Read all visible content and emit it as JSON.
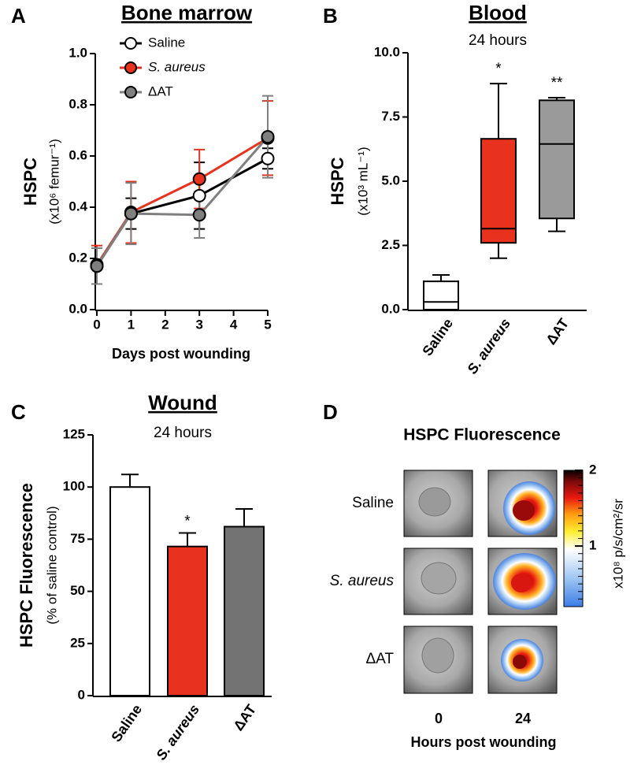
{
  "chart_data": [
    {
      "type": "line",
      "panel": "A",
      "title": "Bone marrow",
      "ylabel": "HSPC",
      "ylabel_sub": "(x10⁶ femur⁻¹)",
      "xlabel": "Days post wounding",
      "x": [
        0,
        1,
        3,
        5
      ],
      "xlim": [
        0,
        5
      ],
      "xticks": [
        0,
        1,
        2,
        3,
        4,
        5
      ],
      "ylim": [
        0,
        1
      ],
      "yticks": [
        {
          "value": 0,
          "label": "0.0"
        },
        0.2,
        0.4,
        0.6,
        0.8,
        {
          "value": 1,
          "label": "1.0"
        }
      ],
      "series": [
        {
          "name": "Saline",
          "color": "#000000",
          "marker_fill": "#ffffff",
          "values": [
            0.17,
            0.375,
            0.445,
            0.59
          ],
          "errors": [
            0.07,
            0.06,
            0.13,
            0.04
          ]
        },
        {
          "name": "S. aureus",
          "color": "#e8321e",
          "marker_fill": "#e8321e",
          "values": [
            0.175,
            0.38,
            0.51,
            0.67
          ],
          "errors": [
            0.075,
            0.12,
            0.115,
            0.145
          ]
        },
        {
          "name": "ΔAT",
          "color": "#7f7f7f",
          "marker_fill": "#7f7f7f",
          "values": [
            0.17,
            0.375,
            0.37,
            0.675
          ],
          "errors": [
            0.07,
            0.12,
            0.09,
            0.16
          ]
        }
      ]
    },
    {
      "type": "box",
      "panel": "B",
      "title": "Blood",
      "subtitle": "24 hours",
      "ylabel": "HSPC",
      "ylabel_sub": "(x10³ mL⁻¹)",
      "categories": [
        "Saline",
        "S. aureus",
        "ΔAT"
      ],
      "colors": [
        "#ffffff",
        "#e8321e",
        "#9a9a9a"
      ],
      "ylim": [
        0,
        10
      ],
      "yticks": [
        {
          "value": 0,
          "label": "0.0"
        },
        2.5,
        {
          "value": 5,
          "label": "5.0"
        },
        7.5,
        {
          "value": 10,
          "label": "10.0"
        }
      ],
      "boxes": [
        {
          "min": 0,
          "q1": 0,
          "median": 0.3,
          "q3": 1.1,
          "max": 1.35
        },
        {
          "min": 2.0,
          "q1": 2.6,
          "median": 3.15,
          "q3": 6.65,
          "max": 8.8
        },
        {
          "min": 3.05,
          "q1": 3.55,
          "median": 6.45,
          "q3": 8.15,
          "max": 8.25
        }
      ],
      "significance": [
        null,
        "*",
        "**"
      ]
    },
    {
      "type": "bar",
      "panel": "C",
      "title": "Wound",
      "subtitle": "24 hours",
      "ylabel": "HSPC Fluorescence",
      "ylabel_sub": "(% of saline control)",
      "categories": [
        "Saline",
        "S. aureus",
        "ΔAT"
      ],
      "colors": [
        "#ffffff",
        "#e8321e",
        "#737373"
      ],
      "values": [
        100,
        71.5,
        81
      ],
      "errors": [
        6,
        6.5,
        8.5
      ],
      "ylim": [
        0,
        125
      ],
      "yticks": [
        0,
        25,
        50,
        75,
        100,
        125
      ],
      "significance": [
        null,
        "*",
        null
      ]
    }
  ],
  "image_panel": {
    "panel": "D",
    "title": "HSPC Fluorescence",
    "rows": [
      "Saline",
      "S. aureus",
      "ΔAT"
    ],
    "columns": [
      "0",
      "24"
    ],
    "xlabel": "Hours post wounding",
    "colorbar_label": "x10⁸ p/s/cm²/sr",
    "colorbar_lim": [
      0.2,
      2
    ],
    "colorbar_ticks": [
      1,
      2
    ]
  }
}
